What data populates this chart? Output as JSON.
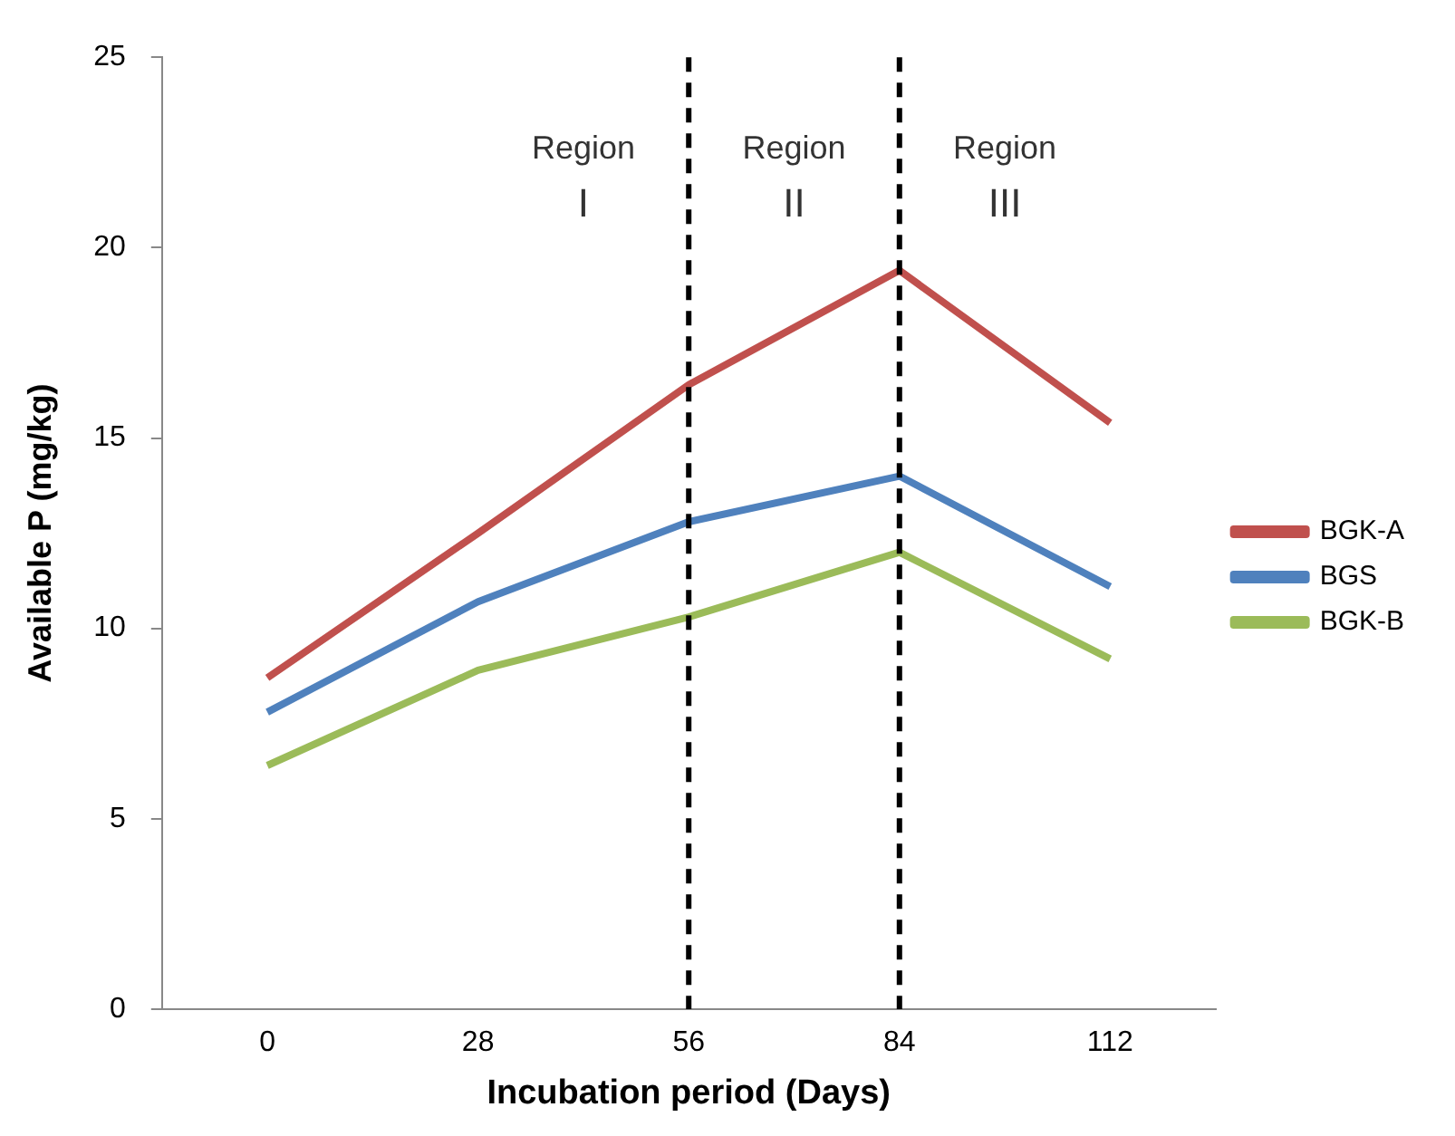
{
  "chart_data": {
    "type": "line",
    "xlabel": "Incubation period (Days)",
    "ylabel": "Available P (mg/kg)",
    "categories": [
      "0",
      "28",
      "56",
      "84",
      "112"
    ],
    "series": [
      {
        "name": "BGK-A",
        "color": "#c0504d",
        "values": [
          8.7,
          12.5,
          16.4,
          19.4,
          15.4
        ]
      },
      {
        "name": "BGS",
        "color": "#4f81bd",
        "values": [
          7.8,
          10.7,
          12.8,
          14.0,
          11.1
        ]
      },
      {
        "name": "BGK-B",
        "color": "#9bbb59",
        "values": [
          6.4,
          8.9,
          10.3,
          12.0,
          9.2
        ]
      }
    ],
    "ylim": [
      0,
      25
    ],
    "yticks": [
      0,
      5,
      10,
      15,
      20,
      25
    ],
    "grid": false,
    "legend": "right",
    "marker": "none",
    "line_style": "solid",
    "ref_lines": [
      {
        "axis": "x",
        "value": "56",
        "color": "#000000",
        "line_style": "dashed"
      },
      {
        "axis": "x",
        "value": "84",
        "color": "#000000",
        "line_style": "dashed"
      }
    ],
    "annotations": [
      "Region\nI",
      "Region\nII",
      "Region\nIII"
    ]
  }
}
